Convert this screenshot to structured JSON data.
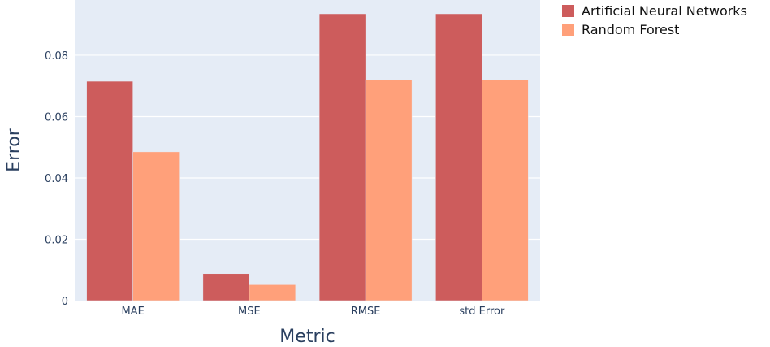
{
  "chart_data": {
    "type": "bar",
    "xlabel": "Metric",
    "ylabel": "Error",
    "categories": [
      "MAE",
      "MSE",
      "RMSE",
      "std Error"
    ],
    "ylim": [
      0,
      0.098
    ],
    "yticks": [
      0,
      0.02,
      0.04,
      0.06,
      0.08
    ],
    "ytick_labels": [
      "0",
      "0.02",
      "0.04",
      "0.06",
      "0.08"
    ],
    "grid": true,
    "legend_position": "top-right",
    "series": [
      {
        "name": "Artificial Neural Networks",
        "color": "#CD5C5C",
        "values": [
          0.0715,
          0.0088,
          0.0935,
          0.0935
        ]
      },
      {
        "name": "Random Forest",
        "color": "#FFA07A",
        "values": [
          0.0485,
          0.0052,
          0.072,
          0.072
        ]
      }
    ]
  }
}
